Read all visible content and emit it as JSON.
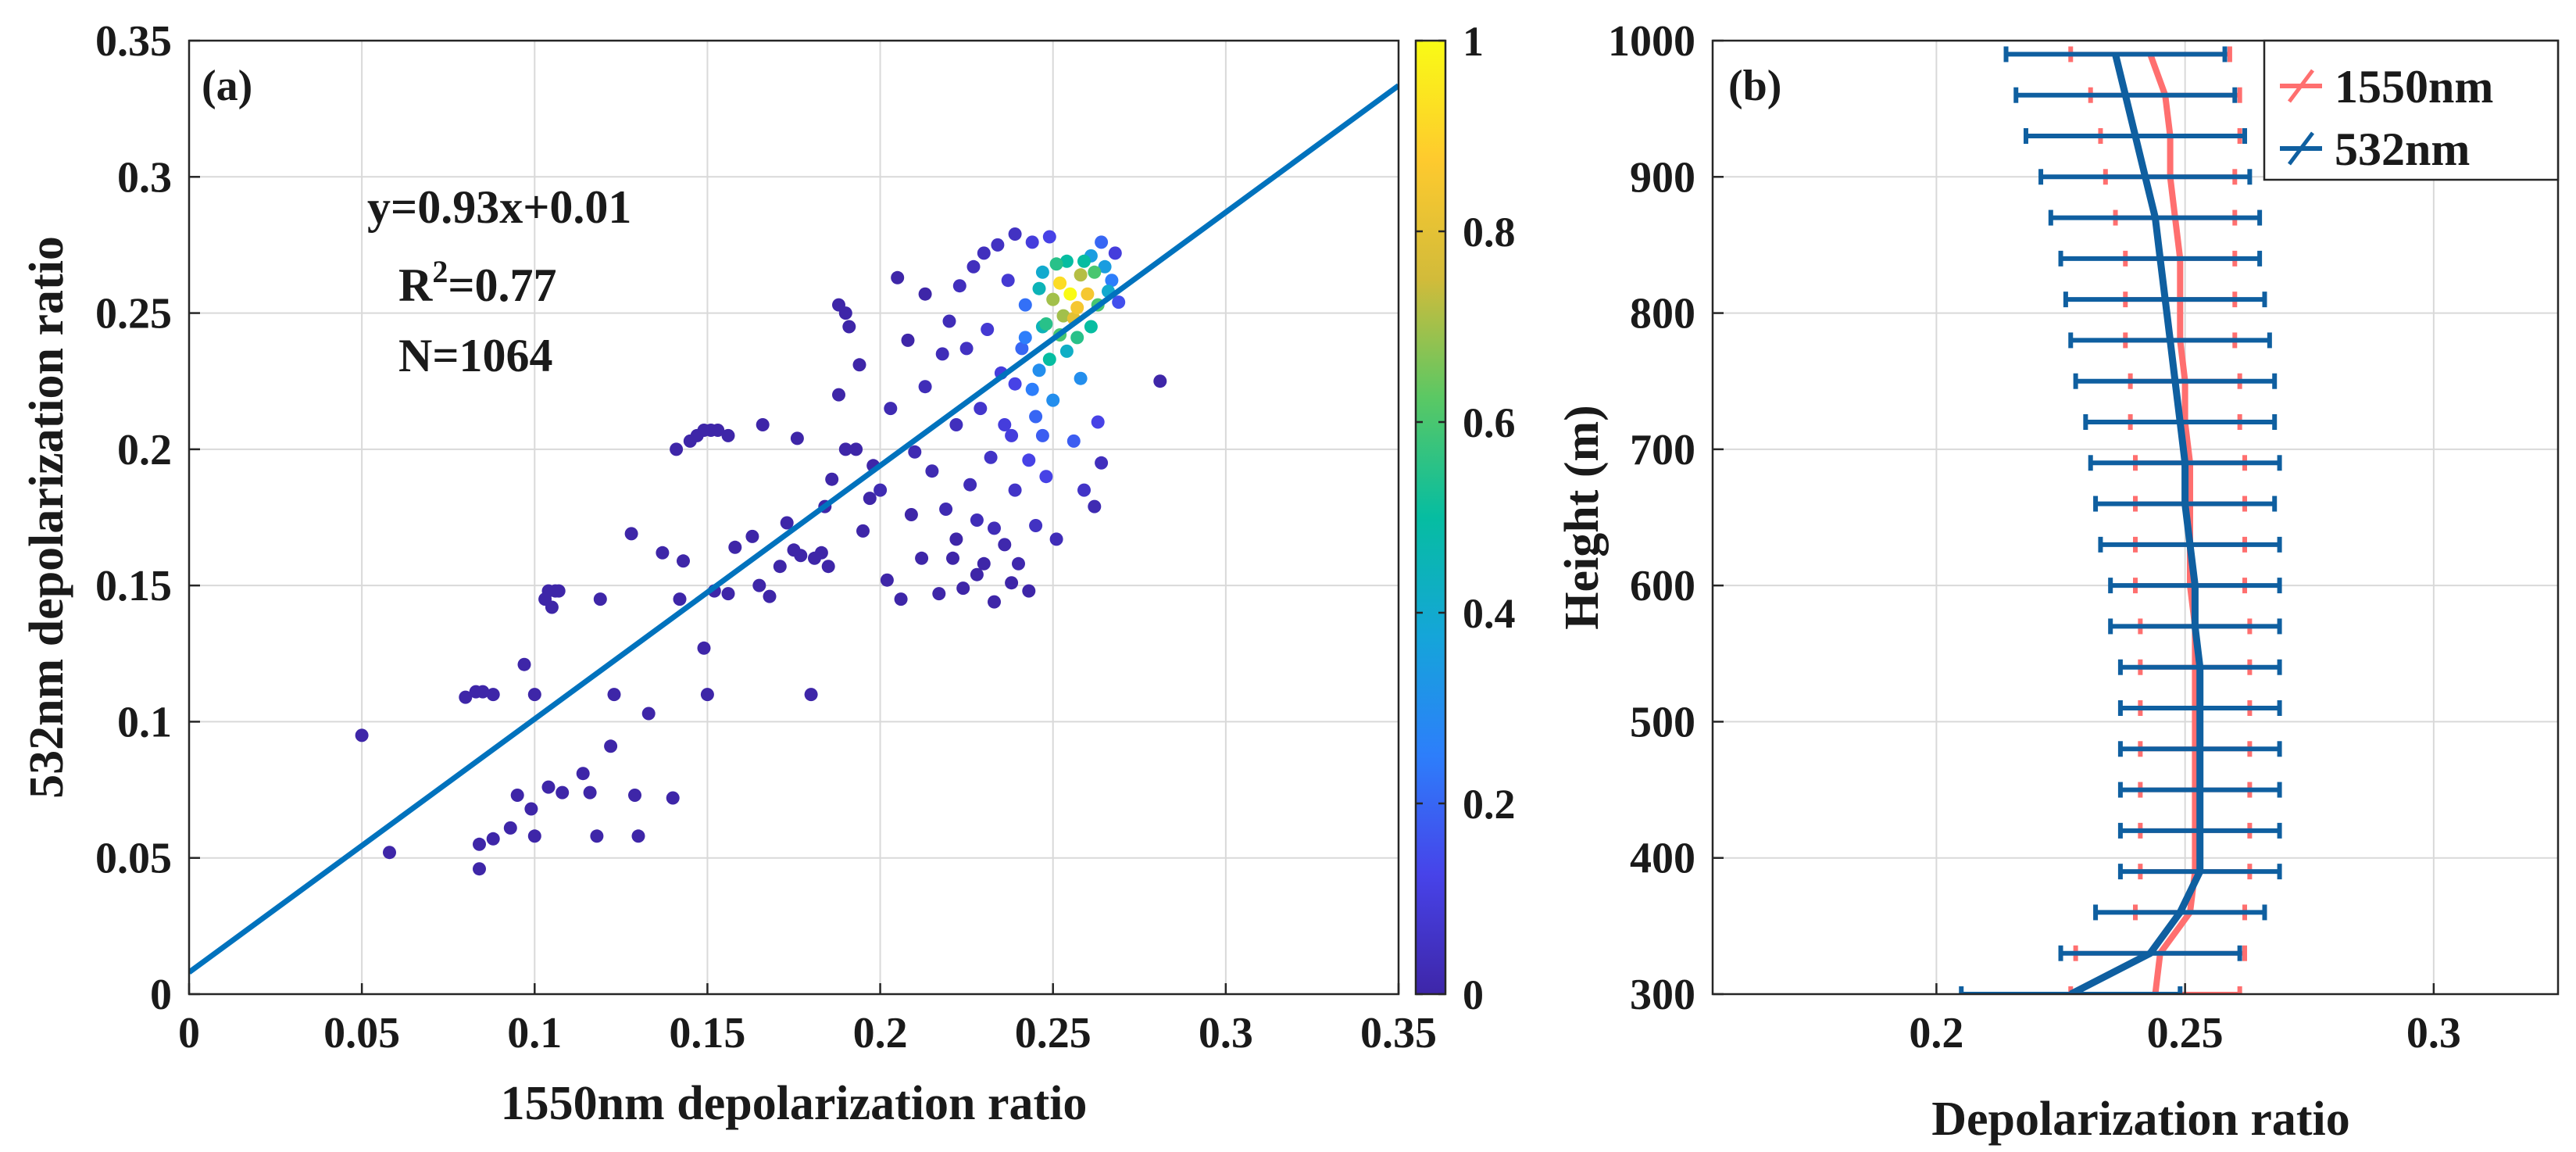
{
  "chart_data": [
    {
      "type": "scatter",
      "panel_label": "(a)",
      "xlabel": "1550nm depolarization ratio",
      "ylabel": "532nm depolarization ratio",
      "xlim": [
        0,
        0.35
      ],
      "ylim": [
        0,
        0.35
      ],
      "xticks": [
        0,
        0.05,
        0.1,
        0.15,
        0.2,
        0.25,
        0.3,
        0.35
      ],
      "xtick_labels": [
        "0",
        "0.05",
        "0.1",
        "0.15",
        "0.2",
        "0.25",
        "0.3",
        "0.35"
      ],
      "yticks": [
        0,
        0.05,
        0.1,
        0.15,
        0.2,
        0.25,
        0.3,
        0.35
      ],
      "ytick_labels": [
        "0",
        "0.05",
        "0.1",
        "0.15",
        "0.2",
        "0.25",
        "0.3",
        "0.35"
      ],
      "grid": true,
      "fit": {
        "slope": 0.93,
        "intercept": 0.008,
        "color": "#0072bd"
      },
      "annotations": {
        "equation": "y=0.93x+0.01",
        "r2_label": "R",
        "r2_sup": "2",
        "r2_value": "=0.77",
        "n": "N=1064"
      },
      "colorbar": {
        "range": [
          0,
          1
        ],
        "ticks": [
          0,
          0.2,
          0.4,
          0.6,
          0.8,
          1
        ],
        "tick_labels": [
          "0",
          "0.2",
          "0.4",
          "0.6",
          "0.8",
          "1"
        ],
        "colormap": [
          "#3e26a8",
          "#4743e9",
          "#2d7efb",
          "#15a5d9",
          "#06bda1",
          "#5ac864",
          "#d2bb3a",
          "#feca2e",
          "#f9fb15"
        ]
      },
      "points": [
        [
          0.05,
          0.095,
          0
        ],
        [
          0.058,
          0.052,
          0
        ],
        [
          0.08,
          0.109,
          0
        ],
        [
          0.083,
          0.111,
          0
        ],
        [
          0.085,
          0.111,
          0
        ],
        [
          0.088,
          0.11,
          0
        ],
        [
          0.084,
          0.055,
          0
        ],
        [
          0.088,
          0.057,
          0
        ],
        [
          0.084,
          0.046,
          0
        ],
        [
          0.093,
          0.061,
          0
        ],
        [
          0.095,
          0.073,
          0
        ],
        [
          0.097,
          0.121,
          0
        ],
        [
          0.099,
          0.068,
          0
        ],
        [
          0.1,
          0.058,
          0
        ],
        [
          0.1,
          0.11,
          0
        ],
        [
          0.103,
          0.145,
          0
        ],
        [
          0.104,
          0.148,
          0
        ],
        [
          0.106,
          0.148,
          0
        ],
        [
          0.105,
          0.142,
          0
        ],
        [
          0.107,
          0.148,
          0
        ],
        [
          0.104,
          0.076,
          0
        ],
        [
          0.108,
          0.074,
          0
        ],
        [
          0.114,
          0.081,
          0
        ],
        [
          0.118,
          0.058,
          0
        ],
        [
          0.119,
          0.145,
          0
        ],
        [
          0.116,
          0.074,
          0
        ],
        [
          0.122,
          0.091,
          0
        ],
        [
          0.123,
          0.11,
          0
        ],
        [
          0.128,
          0.169,
          0
        ],
        [
          0.129,
          0.073,
          0
        ],
        [
          0.13,
          0.058,
          0
        ],
        [
          0.133,
          0.103,
          0
        ],
        [
          0.137,
          0.162,
          0
        ],
        [
          0.14,
          0.072,
          0
        ],
        [
          0.141,
          0.2,
          0
        ],
        [
          0.142,
          0.145,
          0
        ],
        [
          0.143,
          0.159,
          0
        ],
        [
          0.145,
          0.203,
          0
        ],
        [
          0.147,
          0.205,
          0
        ],
        [
          0.149,
          0.207,
          0
        ],
        [
          0.151,
          0.207,
          0
        ],
        [
          0.153,
          0.207,
          0
        ],
        [
          0.156,
          0.205,
          0
        ],
        [
          0.149,
          0.127,
          0
        ],
        [
          0.15,
          0.11,
          0
        ],
        [
          0.152,
          0.148,
          0
        ],
        [
          0.156,
          0.147,
          0
        ],
        [
          0.158,
          0.164,
          0
        ],
        [
          0.163,
          0.168,
          0
        ],
        [
          0.165,
          0.15,
          0
        ],
        [
          0.166,
          0.209,
          0
        ],
        [
          0.168,
          0.146,
          0
        ],
        [
          0.171,
          0.157,
          0
        ],
        [
          0.173,
          0.173,
          0
        ],
        [
          0.175,
          0.163,
          0
        ],
        [
          0.177,
          0.161,
          0
        ],
        [
          0.176,
          0.204,
          0
        ],
        [
          0.18,
          0.11,
          0
        ],
        [
          0.181,
          0.16,
          0
        ],
        [
          0.183,
          0.162,
          0
        ],
        [
          0.184,
          0.179,
          0
        ],
        [
          0.185,
          0.157,
          0
        ],
        [
          0.186,
          0.189,
          0
        ],
        [
          0.188,
          0.22,
          0
        ],
        [
          0.188,
          0.253,
          0
        ],
        [
          0.19,
          0.25,
          0
        ],
        [
          0.19,
          0.2,
          0
        ],
        [
          0.191,
          0.245,
          0
        ],
        [
          0.193,
          0.2,
          0
        ],
        [
          0.194,
          0.231,
          0
        ],
        [
          0.195,
          0.17,
          0
        ],
        [
          0.197,
          0.182,
          0
        ],
        [
          0.198,
          0.194,
          0
        ],
        [
          0.2,
          0.185,
          0.02
        ],
        [
          0.202,
          0.152,
          0
        ],
        [
          0.203,
          0.215,
          0.02
        ],
        [
          0.205,
          0.263,
          0
        ],
        [
          0.206,
          0.145,
          0
        ],
        [
          0.208,
          0.24,
          0
        ],
        [
          0.209,
          0.176,
          0
        ],
        [
          0.21,
          0.199,
          0.02
        ],
        [
          0.212,
          0.16,
          0
        ],
        [
          0.213,
          0.257,
          0
        ],
        [
          0.213,
          0.223,
          0.03
        ],
        [
          0.215,
          0.192,
          0.02
        ],
        [
          0.217,
          0.147,
          0
        ],
        [
          0.218,
          0.235,
          0.03
        ],
        [
          0.219,
          0.178,
          0.02
        ],
        [
          0.22,
          0.247,
          0.03
        ],
        [
          0.221,
          0.16,
          0
        ],
        [
          0.222,
          0.209,
          0.04
        ],
        [
          0.223,
          0.26,
          0.04
        ],
        [
          0.224,
          0.149,
          0
        ],
        [
          0.225,
          0.237,
          0.05
        ],
        [
          0.226,
          0.187,
          0.03
        ],
        [
          0.227,
          0.267,
          0.04
        ],
        [
          0.228,
          0.174,
          0.03
        ],
        [
          0.229,
          0.215,
          0.07
        ],
        [
          0.23,
          0.272,
          0.04
        ],
        [
          0.23,
          0.158,
          0
        ],
        [
          0.231,
          0.244,
          0.08
        ],
        [
          0.232,
          0.197,
          0.06
        ],
        [
          0.233,
          0.171,
          0.03
        ],
        [
          0.234,
          0.275,
          0.05
        ],
        [
          0.235,
          0.228,
          0.1
        ],
        [
          0.236,
          0.165,
          0.01
        ],
        [
          0.237,
          0.262,
          0.08
        ],
        [
          0.238,
          0.205,
          0.1
        ],
        [
          0.239,
          0.279,
          0.05
        ],
        [
          0.239,
          0.185,
          0.06
        ],
        [
          0.24,
          0.158,
          0.01
        ],
        [
          0.241,
          0.237,
          0.2
        ],
        [
          0.242,
          0.253,
          0.22
        ],
        [
          0.243,
          0.196,
          0.12
        ],
        [
          0.244,
          0.276,
          0.1
        ],
        [
          0.245,
          0.212,
          0.2
        ],
        [
          0.245,
          0.172,
          0.05
        ],
        [
          0.246,
          0.229,
          0.3
        ],
        [
          0.247,
          0.245,
          0.45
        ],
        [
          0.247,
          0.265,
          0.4
        ],
        [
          0.248,
          0.19,
          0.12
        ],
        [
          0.249,
          0.278,
          0.12
        ],
        [
          0.25,
          0.255,
          0.7
        ],
        [
          0.25,
          0.218,
          0.3
        ],
        [
          0.251,
          0.167,
          0.03
        ],
        [
          0.252,
          0.261,
          0.92
        ],
        [
          0.253,
          0.249,
          0.7
        ],
        [
          0.254,
          0.236,
          0.42
        ],
        [
          0.254,
          0.269,
          0.5
        ],
        [
          0.255,
          0.257,
          1
        ],
        [
          0.256,
          0.203,
          0.18
        ],
        [
          0.257,
          0.252,
          0.85
        ],
        [
          0.258,
          0.264,
          0.72
        ],
        [
          0.258,
          0.226,
          0.3
        ],
        [
          0.259,
          0.185,
          0.06
        ],
        [
          0.26,
          0.257,
          0.85
        ],
        [
          0.261,
          0.245,
          0.5
        ],
        [
          0.261,
          0.271,
          0.35
        ],
        [
          0.262,
          0.265,
          0.6
        ],
        [
          0.263,
          0.21,
          0.12
        ],
        [
          0.263,
          0.253,
          0.6
        ],
        [
          0.264,
          0.276,
          0.2
        ],
        [
          0.265,
          0.267,
          0.35
        ],
        [
          0.266,
          0.258,
          0.4
        ],
        [
          0.267,
          0.262,
          0.25
        ],
        [
          0.268,
          0.272,
          0.1
        ],
        [
          0.269,
          0.254,
          0.15
        ],
        [
          0.262,
          0.179,
          0.02
        ],
        [
          0.264,
          0.195,
          0.04
        ],
        [
          0.281,
          0.225,
          0
        ],
        [
          0.243,
          0.148,
          0
        ],
        [
          0.238,
          0.151,
          0
        ],
        [
          0.233,
          0.144,
          0
        ],
        [
          0.228,
          0.154,
          0
        ],
        [
          0.222,
          0.167,
          0
        ],
        [
          0.236,
          0.209,
          0.1
        ],
        [
          0.244,
          0.222,
          0.25
        ],
        [
          0.249,
          0.233,
          0.5
        ],
        [
          0.252,
          0.242,
          0.6
        ],
        [
          0.256,
          0.248,
          0.8
        ],
        [
          0.248,
          0.246,
          0.55
        ],
        [
          0.251,
          0.268,
          0.55
        ],
        [
          0.246,
          0.259,
          0.45
        ],
        [
          0.259,
          0.269,
          0.5
        ],
        [
          0.257,
          0.241,
          0.55
        ],
        [
          0.242,
          0.241,
          0.25
        ],
        [
          0.239,
          0.224,
          0.12
        ],
        [
          0.247,
          0.205,
          0.18
        ]
      ]
    },
    {
      "type": "line",
      "panel_label": "(b)",
      "xlabel": "Depolarization ratio",
      "ylabel": "Height (m)",
      "xlim": [
        0.155,
        0.325
      ],
      "ylim": [
        300,
        1000
      ],
      "xticks": [
        0.2,
        0.25,
        0.3
      ],
      "xtick_labels": [
        "0.2",
        "0.25",
        "0.3"
      ],
      "yticks": [
        300,
        400,
        500,
        600,
        700,
        800,
        900,
        1000
      ],
      "ytick_labels": [
        "300",
        "400",
        "500",
        "600",
        "700",
        "800",
        "900",
        "1000"
      ],
      "grid": true,
      "legend_position": "top-right",
      "series": [
        {
          "name": "1550nm",
          "color": "#ff6f6f",
          "height": [
            300,
            330,
            360,
            390,
            420,
            450,
            480,
            510,
            540,
            570,
            600,
            630,
            660,
            690,
            720,
            750,
            780,
            810,
            840,
            870,
            900,
            930,
            960,
            990
          ],
          "values": [
            0.244,
            0.245,
            0.251,
            0.252,
            0.252,
            0.252,
            0.252,
            0.252,
            0.252,
            0.252,
            0.251,
            0.251,
            0.251,
            0.251,
            0.25,
            0.25,
            0.249,
            0.249,
            0.249,
            0.248,
            0.247,
            0.247,
            0.246,
            0.243
          ],
          "errors": [
            0.017,
            0.017,
            0.011,
            0.011,
            0.011,
            0.011,
            0.011,
            0.011,
            0.011,
            0.011,
            0.011,
            0.011,
            0.011,
            0.011,
            0.011,
            0.011,
            0.011,
            0.011,
            0.011,
            0.012,
            0.013,
            0.014,
            0.015,
            0.016
          ]
        },
        {
          "name": "532nm",
          "color": "#0f5fa0",
          "height": [
            300,
            330,
            360,
            390,
            420,
            450,
            480,
            510,
            540,
            570,
            600,
            630,
            660,
            690,
            720,
            750,
            780,
            810,
            840,
            870,
            900,
            930,
            960,
            990
          ],
          "values": [
            0.227,
            0.243,
            0.249,
            0.253,
            0.253,
            0.253,
            0.253,
            0.253,
            0.253,
            0.252,
            0.252,
            0.251,
            0.25,
            0.25,
            0.249,
            0.248,
            0.247,
            0.246,
            0.245,
            0.244,
            0.242,
            0.24,
            0.238,
            0.236
          ],
          "errors": [
            0.022,
            0.018,
            0.017,
            0.016,
            0.016,
            0.016,
            0.016,
            0.016,
            0.016,
            0.017,
            0.017,
            0.018,
            0.018,
            0.019,
            0.019,
            0.02,
            0.02,
            0.02,
            0.02,
            0.021,
            0.021,
            0.022,
            0.022,
            0.022
          ]
        }
      ]
    }
  ]
}
